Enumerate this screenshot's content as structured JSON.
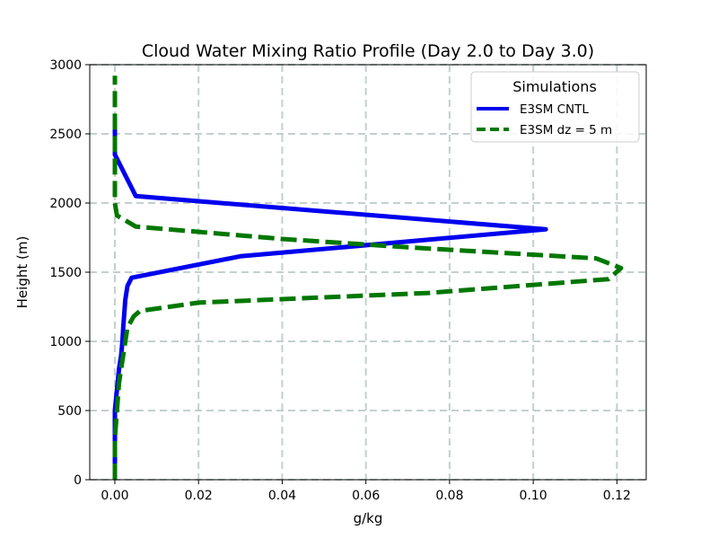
{
  "chart_data": {
    "type": "line",
    "title": "Cloud Water Mixing Ratio Profile (Day 2.0 to Day 3.0)",
    "xlabel": "g/kg",
    "ylabel": "Height (m)",
    "xlim": [
      -0.006,
      0.127
    ],
    "ylim": [
      0,
      3000
    ],
    "xticks": [
      0.0,
      0.02,
      0.04,
      0.06,
      0.08,
      0.1,
      0.12
    ],
    "xtick_labels": [
      "0.00",
      "0.02",
      "0.04",
      "0.06",
      "0.08",
      "0.10",
      "0.12"
    ],
    "yticks": [
      0,
      500,
      1000,
      1500,
      2000,
      2500,
      3000
    ],
    "ytick_labels": [
      "0",
      "500",
      "1000",
      "1500",
      "2000",
      "2500",
      "3000"
    ],
    "grid": true,
    "legend": {
      "title": "Simulations",
      "placement": "top-right"
    },
    "series": [
      {
        "name": "E3SM CNTL",
        "color": "#0000ee",
        "style": "solid",
        "x": [
          0.0,
          0.0,
          0.0,
          0.0005,
          0.001,
          0.0015,
          0.0018,
          0.002,
          0.0025,
          0.003,
          0.004,
          0.03,
          0.103,
          0.005,
          0.0,
          0.0,
          0.0
        ],
        "y": [
          0,
          300,
          500,
          650,
          800,
          900,
          1000,
          1100,
          1300,
          1400,
          1460,
          1615,
          1810,
          2050,
          2350,
          2500,
          2600
        ]
      },
      {
        "name": "E3SM dz = 5 m",
        "color": "#007700",
        "style": "dashed",
        "x": [
          0.0,
          0.0,
          0.0005,
          0.001,
          0.002,
          0.003,
          0.0045,
          0.006,
          0.02,
          0.075,
          0.118,
          0.121,
          0.115,
          0.07,
          0.04,
          0.005,
          0.0005,
          0.0,
          0.0,
          0.0
        ],
        "y": [
          0,
          300,
          500,
          700,
          900,
          1100,
          1180,
          1220,
          1280,
          1350,
          1450,
          1530,
          1600,
          1680,
          1740,
          1830,
          1910,
          2000,
          2500,
          2920
        ]
      }
    ]
  }
}
